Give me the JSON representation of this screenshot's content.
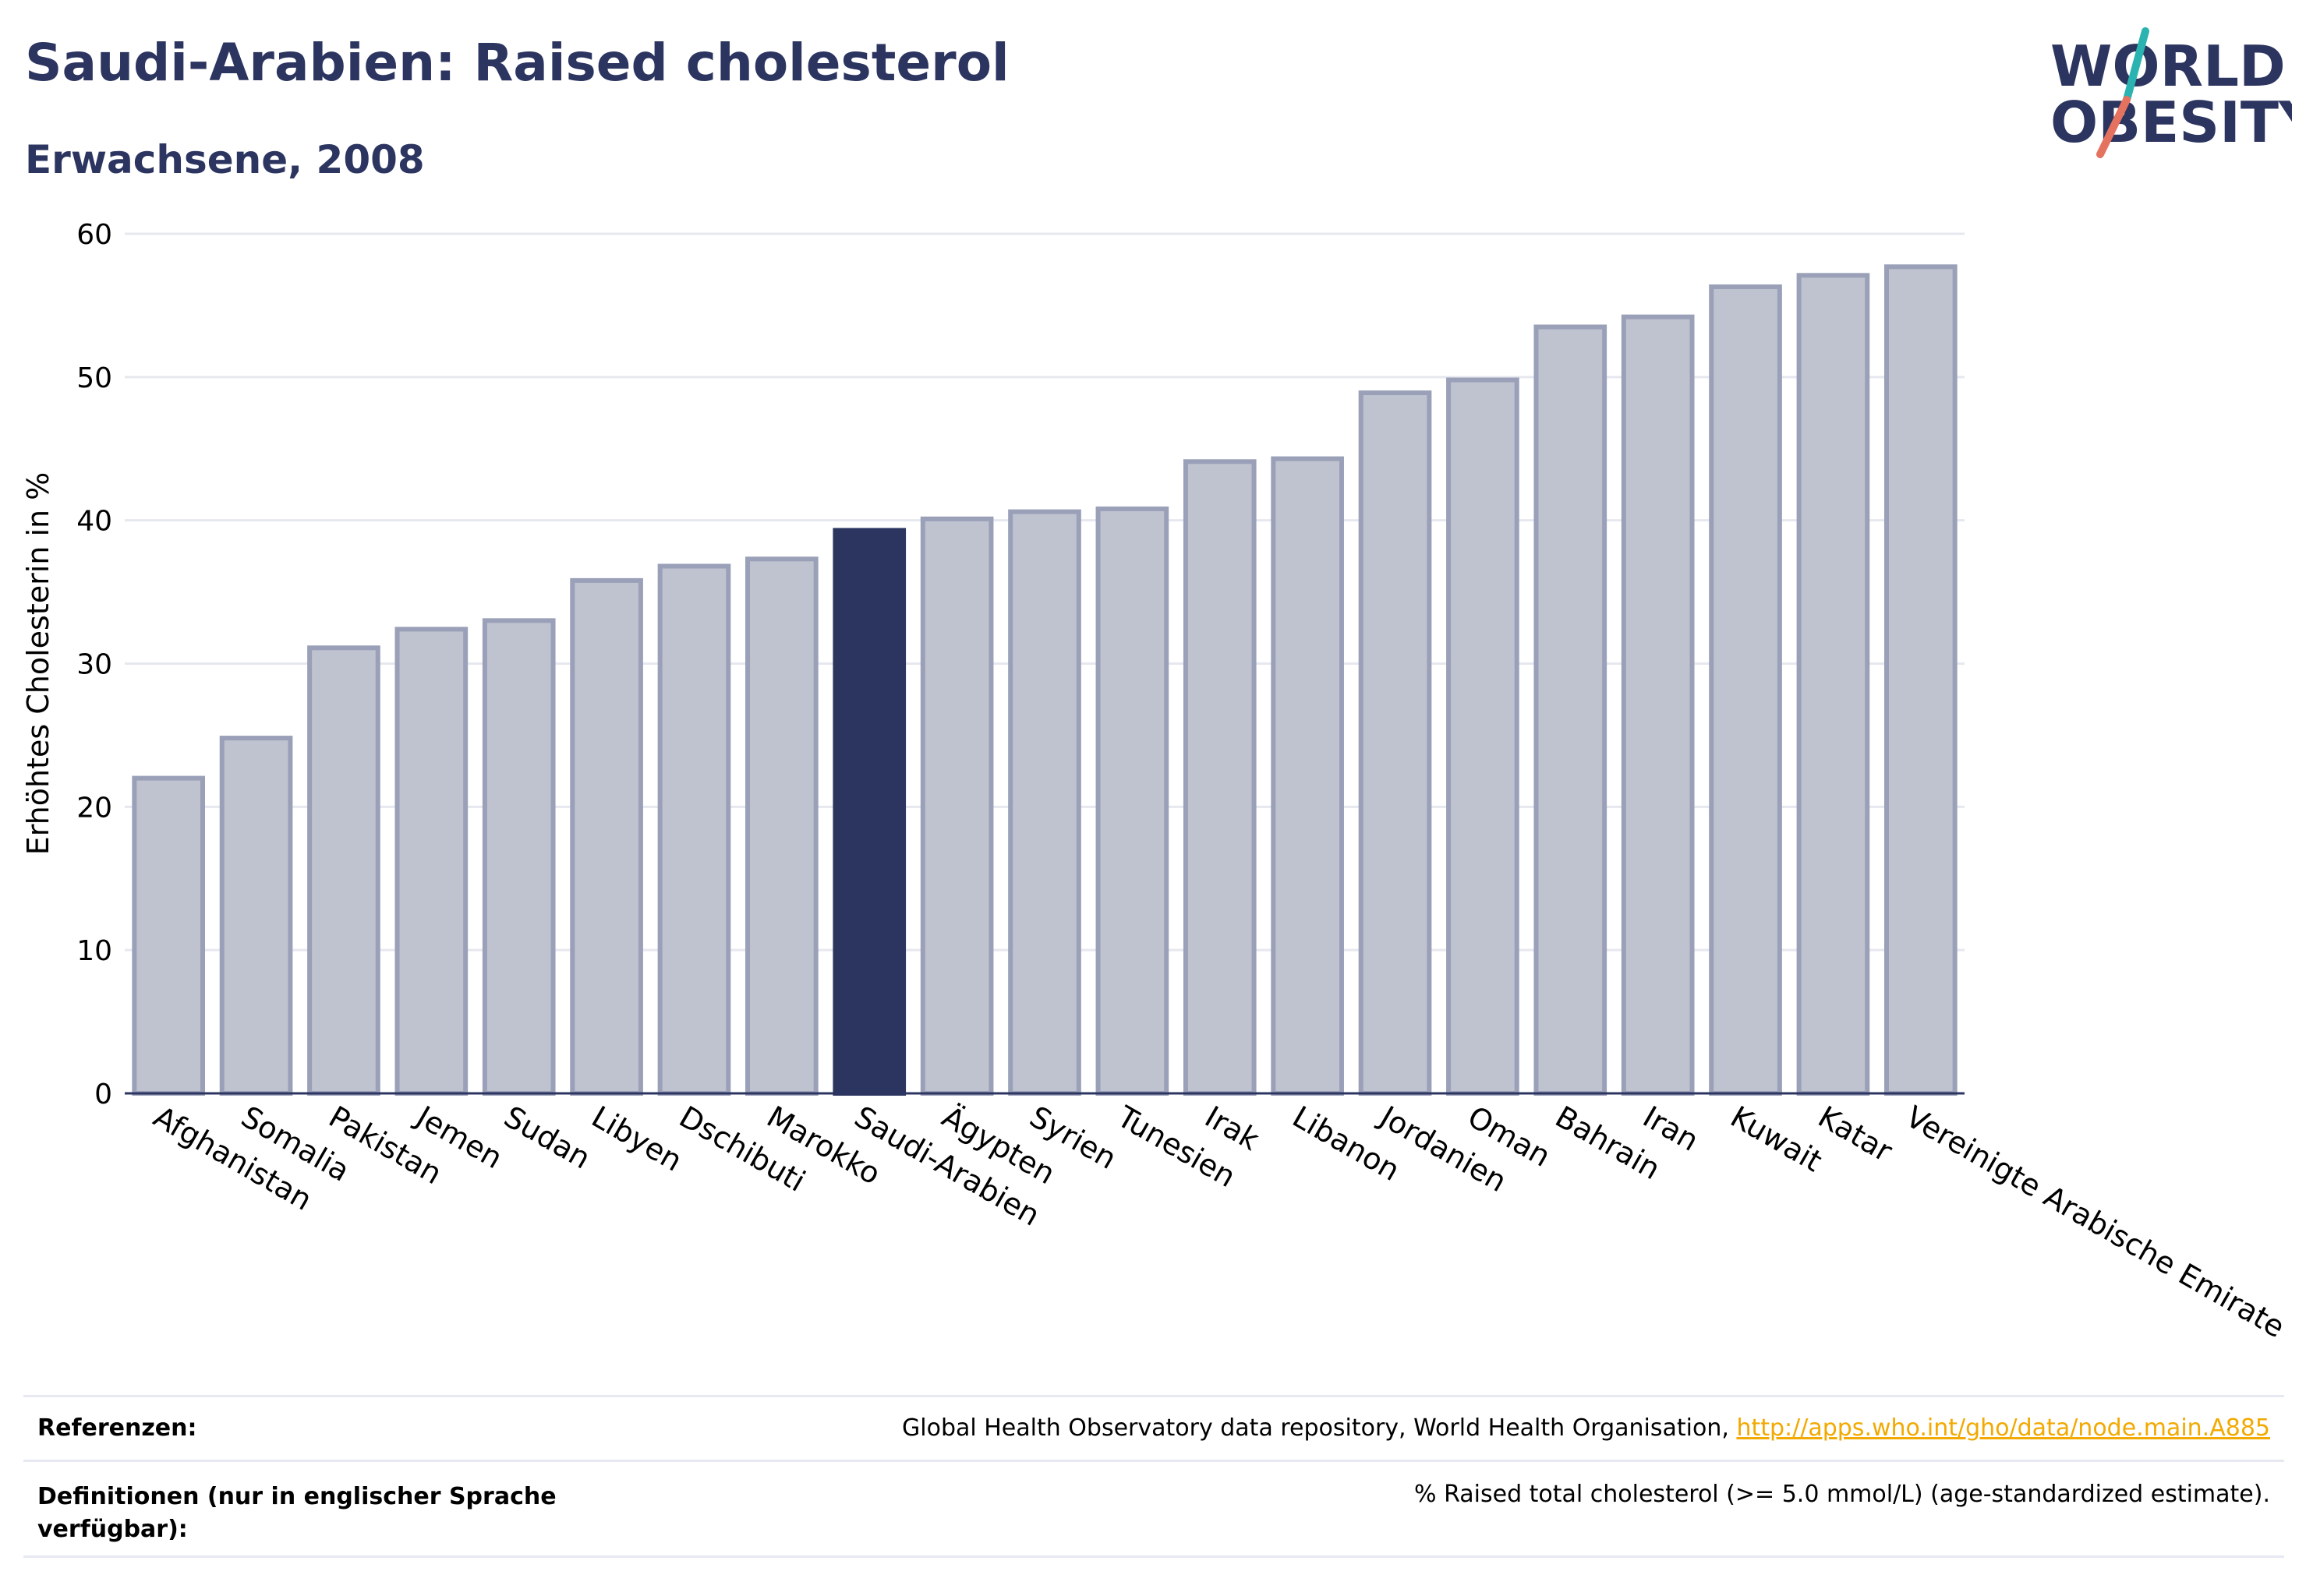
{
  "header": {
    "title": "Saudi-Arabien: Raised cholesterol",
    "subtitle": "Erwachsene, 2008"
  },
  "logo": {
    "line1": "WORLD",
    "line2": "OBESITY"
  },
  "colors": {
    "highlight": "#2c3560",
    "bar_fill": "#bfc2cf",
    "bar_stroke": "#9aa0b8",
    "grid": "#e6e8ef",
    "link": "#f2a900"
  },
  "chart_data": {
    "type": "bar",
    "ylabel": "Erhöhtes Cholesterin in %",
    "ylim": [
      0,
      60
    ],
    "yticks": [
      0,
      10,
      20,
      30,
      40,
      50,
      60
    ],
    "grid": true,
    "highlight": "Saudi-Arabien",
    "categories": [
      "Afghanistan",
      "Somalia",
      "Pakistan",
      "Jemen",
      "Sudan",
      "Libyen",
      "Dschibuti",
      "Marokko",
      "Saudi-Arabien",
      "Ägypten",
      "Syrien",
      "Tunesien",
      "Irak",
      "Libanon",
      "Jordanien",
      "Oman",
      "Bahrain",
      "Iran",
      "Kuwait",
      "Katar",
      "Vereinigte Arabische Emirate"
    ],
    "values": [
      22.0,
      24.8,
      31.1,
      32.4,
      33.0,
      35.8,
      36.8,
      37.3,
      39.3,
      40.1,
      40.6,
      40.8,
      44.1,
      44.3,
      48.9,
      49.8,
      53.5,
      54.2,
      56.3,
      57.1,
      57.7
    ]
  },
  "references": {
    "sources_label": "Referenzen:",
    "sources_text": "Global Health Observatory data repository, World Health Organisation, ",
    "sources_link": "http://apps.who.int/gho/data/node.main.A885",
    "definitions_label": "Definitionen (nur in englischer Sprache verfügbar):",
    "definitions_text": "% Raised total cholesterol (>= 5.0 mmol/L) (age-standardized estimate)."
  }
}
